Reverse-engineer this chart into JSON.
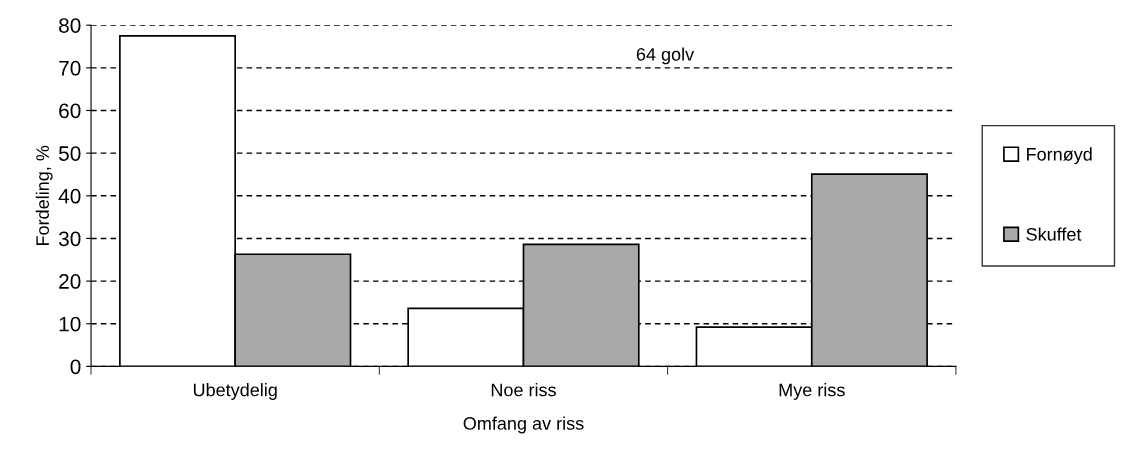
{
  "chart_data": {
    "type": "bar",
    "xlabel": "Omfang av riss",
    "ylabel": "Fordeling, %",
    "categories": [
      "Ubetydelig",
      "Noe riss",
      "Mye riss"
    ],
    "series": [
      {
        "name": "Fornøyd",
        "color": "#ffffff",
        "values": [
          77.5,
          13.6,
          9.2
        ]
      },
      {
        "name": "Skuffet",
        "color": "#a9a9a9",
        "values": [
          26.3,
          28.6,
          45.1
        ]
      }
    ],
    "ylim": [
      0,
      80
    ],
    "yticks": [
      0,
      10,
      20,
      30,
      40,
      50,
      60,
      70,
      80
    ],
    "grid": "y",
    "legend": "right",
    "annotations": [
      "64 golv"
    ]
  }
}
